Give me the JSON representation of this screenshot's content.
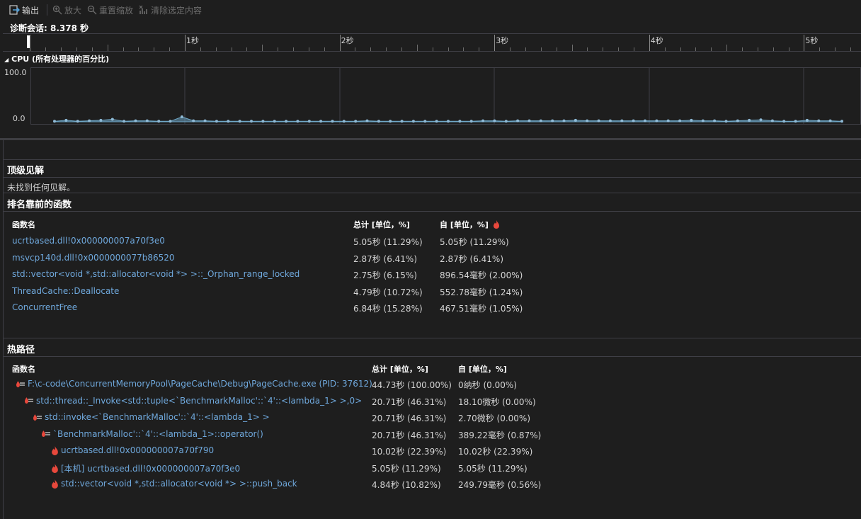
{
  "toolbar": {
    "export_label": "输出",
    "zoom_in_label": "放大",
    "reset_zoom_label": "重置缩放",
    "clear_selection_label": "清除选定内容"
  },
  "session": {
    "label": "诊断会话: 8.378 秒"
  },
  "ruler": {
    "ticks": [
      "1秒",
      "2秒",
      "3秒",
      "4秒",
      "5秒"
    ]
  },
  "cpu": {
    "title": "CPU (所有处理器的百分比)",
    "y_max_label": "100.0",
    "y_min_label": "0.0",
    "series_color": "#6fa8c8",
    "values": [
      1,
      3,
      1,
      2,
      3,
      5,
      1,
      2,
      2,
      1,
      1,
      10,
      2,
      2,
      1,
      1,
      1,
      1,
      1,
      1,
      1,
      1,
      1,
      1,
      1,
      1,
      1,
      2,
      1,
      1,
      1,
      1,
      1,
      1,
      1,
      1,
      1,
      2,
      2,
      1,
      2,
      2,
      2,
      2,
      2,
      3,
      2,
      2,
      2,
      2,
      2,
      2,
      2,
      2,
      2,
      3,
      2,
      2,
      1,
      2,
      3,
      4,
      2,
      1,
      1,
      3,
      2,
      2,
      1
    ]
  },
  "insights": {
    "title": "顶级见解",
    "empty_text": "未找到任何见解。"
  },
  "top_functions": {
    "title": "排名靠前的函数",
    "headers": {
      "name": "函数名",
      "total": "总计 [单位，%]",
      "self": "自 [单位，%]"
    },
    "rows": [
      {
        "name": "ucrtbased.dll!0x000000007a70f3e0",
        "total": "5.05秒 (11.29%)",
        "self": "5.05秒 (11.29%)"
      },
      {
        "name": "msvcp140d.dll!0x0000000077b86520",
        "total": "2.87秒 (6.41%)",
        "self": "2.87秒 (6.41%)"
      },
      {
        "name": "std::vector<void *,std::allocator<void *> >::_Orphan_range_locked",
        "total": "2.75秒 (6.15%)",
        "self": "896.54毫秒 (2.00%)"
      },
      {
        "name": "ThreadCache::Deallocate",
        "total": "4.79秒 (10.72%)",
        "self": "552.78毫秒 (1.24%)"
      },
      {
        "name": "ConcurrentFree",
        "total": "6.84秒 (15.28%)",
        "self": "467.51毫秒 (1.05%)"
      }
    ]
  },
  "hot_path": {
    "title": "热路径",
    "headers": {
      "name": "函数名",
      "total": "总计 [单位，%]",
      "self": "自 [单位，%]"
    },
    "rows": [
      {
        "name": "F:\\c-code\\ConcurrentMemoryPool\\PageCache\\Debug\\PageCache.exe (PID: 37612)",
        "total": "44.73秒 (100.00%)",
        "self": "0纳秒 (0.00%)",
        "icon": "hot-path-icon"
      },
      {
        "name": "std::thread::_Invoke<std::tuple<`BenchmarkMalloc'::`4'::<lambda_1> >,0>",
        "total": "20.71秒 (46.31%)",
        "self": "18.10微秒 (0.00%)",
        "icon": "hot-path-icon"
      },
      {
        "name": "std::invoke<`BenchmarkMalloc'::`4'::<lambda_1> >",
        "total": "20.71秒 (46.31%)",
        "self": "2.70微秒 (0.00%)",
        "icon": "hot-path-icon"
      },
      {
        "name": "`BenchmarkMalloc'::`4'::<lambda_1>::operator()",
        "total": "20.71秒 (46.31%)",
        "self": "389.22毫秒 (0.87%)",
        "icon": "hot-path-icon"
      },
      {
        "name": "ucrtbased.dll!0x000000007a70f790",
        "total": "10.02秒 (22.39%)",
        "self": "10.02秒 (22.39%)",
        "icon": "flame-icon"
      },
      {
        "name": "[本机] ucrtbased.dll!0x000000007a70f3e0",
        "total": "5.05秒 (11.29%)",
        "self": "5.05秒 (11.29%)",
        "icon": "flame-icon"
      },
      {
        "name": "std::vector<void *,std::allocator<void *> >::push_back",
        "total": "4.84秒 (10.82%)",
        "self": "249.79毫秒 (0.56%)",
        "icon": "flame-icon"
      }
    ]
  },
  "colors": {
    "accent_link": "#6fa8dc",
    "flame": "#e8483c",
    "background": "#1e1e1e"
  }
}
